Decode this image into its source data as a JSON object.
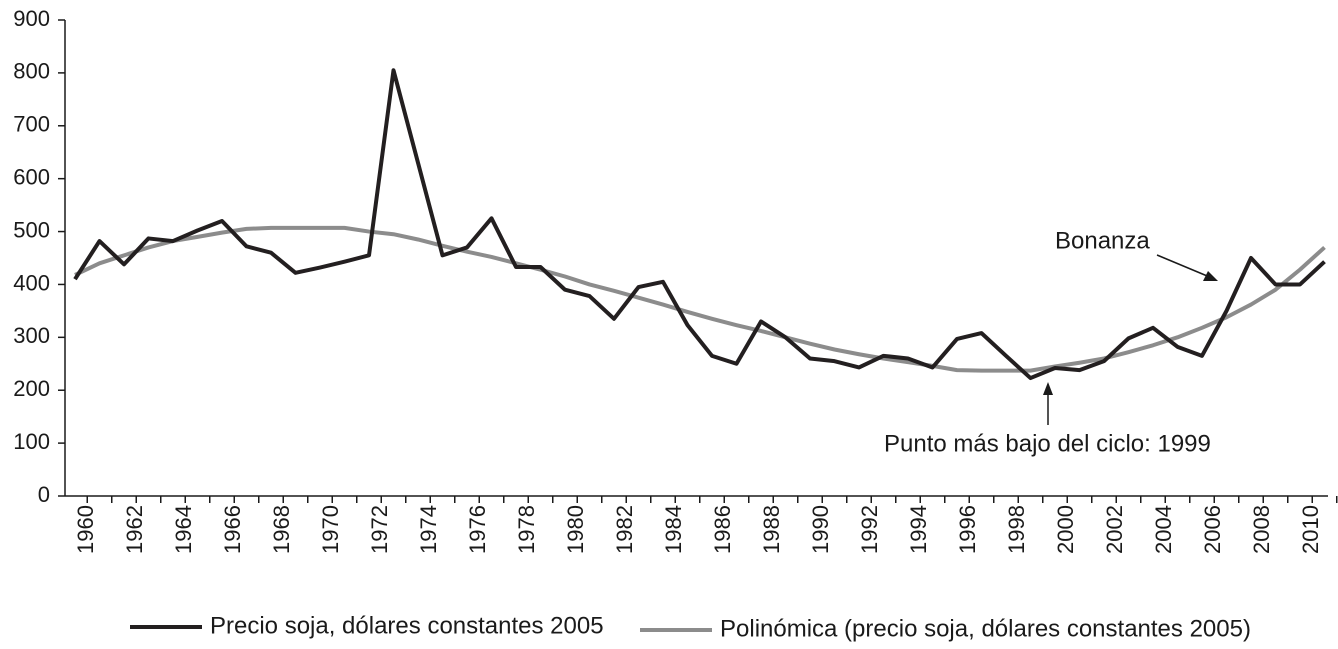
{
  "chart_data": {
    "type": "line",
    "categories": [
      "1960",
      null,
      "1962",
      null,
      "1964",
      null,
      "1966",
      null,
      "1968",
      null,
      "1970",
      null,
      "1972",
      null,
      "1974",
      null,
      "1976",
      null,
      "1978",
      null,
      "1980",
      null,
      "1982",
      null,
      "1984",
      null,
      "1986",
      null,
      "1988",
      null,
      "1990",
      null,
      "1992",
      null,
      "1994",
      null,
      "1996",
      null,
      "1998",
      null,
      "2000",
      null,
      "2002",
      null,
      "2004",
      null,
      "2006",
      null,
      "2008",
      null,
      "2010",
      null
    ],
    "series": [
      {
        "name": "Precio soja, dólares constantes 2005",
        "color": "#231f20",
        "values": [
          410,
          482,
          438,
          487,
          482,
          502,
          520,
          472,
          460,
          422,
          432,
          443,
          455,
          805,
          630,
          455,
          470,
          525,
          433,
          433,
          390,
          378,
          335,
          395,
          405,
          323,
          265,
          250,
          330,
          300,
          260,
          255,
          243,
          265,
          260,
          243,
          297,
          308,
          265,
          223,
          242,
          238,
          255,
          298,
          318,
          282,
          265,
          350,
          450,
          400,
          400,
          443
        ]
      },
      {
        "name": "Polinómica (precio soja, dólares constantes 2005)",
        "color": "#8c8c8c",
        "values": [
          418,
          440,
          455,
          470,
          482,
          490,
          498,
          505,
          507,
          507,
          507,
          507,
          500,
          495,
          485,
          473,
          462,
          452,
          440,
          428,
          415,
          400,
          388,
          375,
          362,
          348,
          335,
          323,
          312,
          300,
          288,
          277,
          268,
          260,
          253,
          246,
          238,
          237,
          237,
          237,
          245,
          252,
          260,
          272,
          285,
          300,
          318,
          338,
          362,
          390,
          428,
          470
        ]
      }
    ],
    "ylim": [
      0,
      900
    ],
    "yticks": [
      0,
      100,
      200,
      300,
      400,
      500,
      600,
      700,
      800,
      900
    ],
    "annotations": [
      "Bonanza",
      "Punto más bajo del ciclo: 1999"
    ]
  }
}
